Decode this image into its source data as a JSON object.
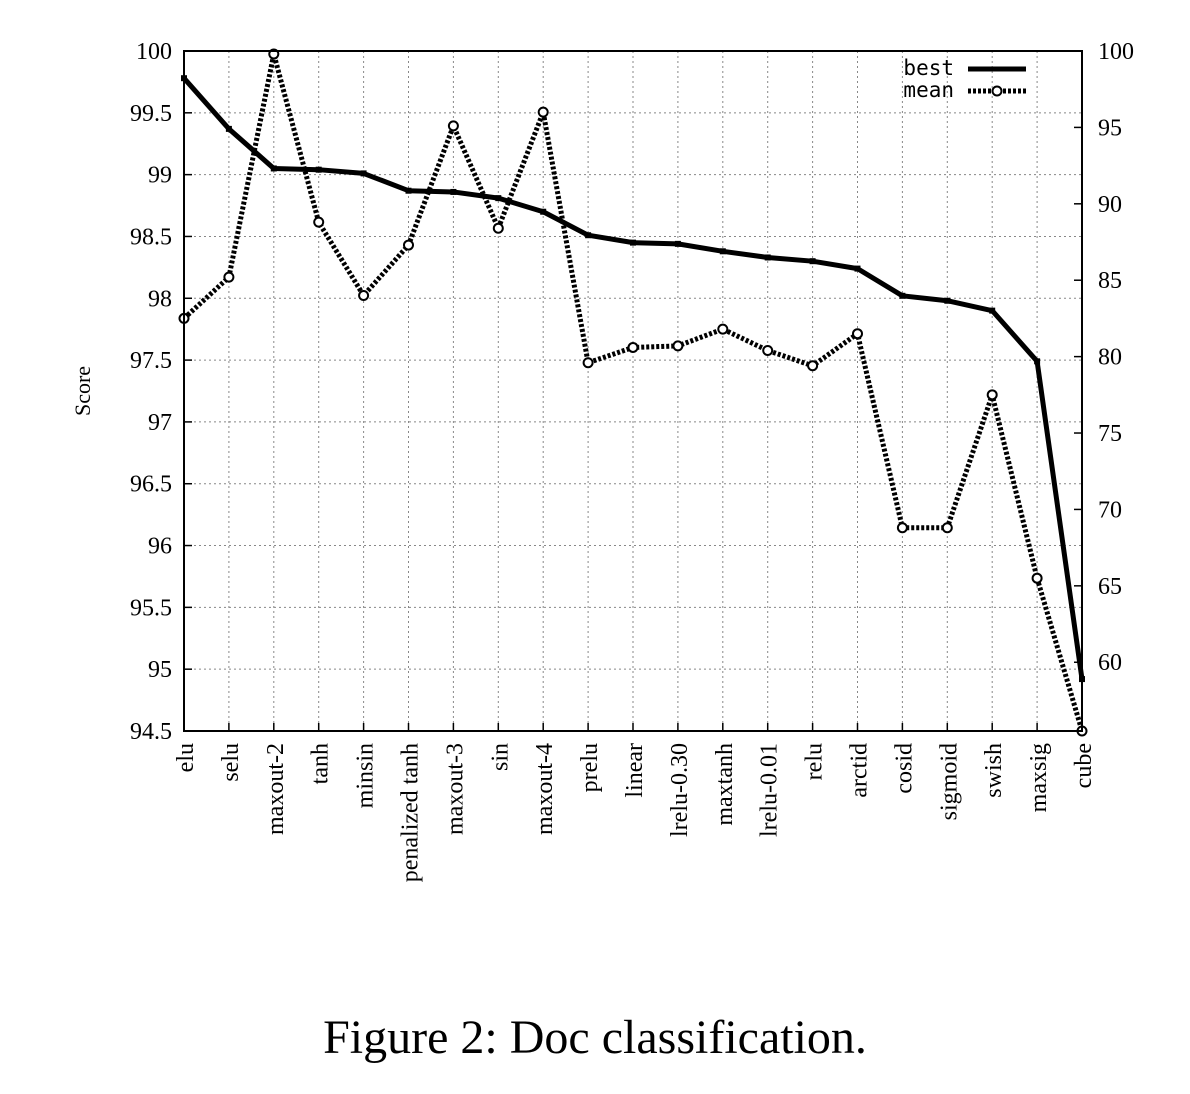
{
  "caption": "Figure 2: Doc classification.",
  "chart_data": {
    "type": "line",
    "title": "",
    "xlabel": "",
    "ylabel": "Score",
    "ylim": [
      94.5,
      100
    ],
    "y2lim": [
      55.5,
      100
    ],
    "yticks": [
      "94.5",
      "95",
      "95.5",
      "96",
      "96.5",
      "97",
      "97.5",
      "98",
      "98.5",
      "99",
      "99.5",
      "100"
    ],
    "y2ticks": [
      "60",
      "65",
      "70",
      "75",
      "80",
      "85",
      "90",
      "95",
      "100"
    ],
    "grid": true,
    "legend_position": "top-right",
    "categories": [
      "elu",
      "selu",
      "maxout-2",
      "tanh",
      "minsin",
      "penalized tanh",
      "maxout-3",
      "sin",
      "maxout-4",
      "prelu",
      "linear",
      "lrelu-0.30",
      "maxtanh",
      "lrelu-0.01",
      "relu",
      "arctid",
      "cosid",
      "sigmoid",
      "swish",
      "maxsig",
      "cube"
    ],
    "series": [
      {
        "name": "best",
        "axis": "left",
        "style": "solid",
        "color": "#000000",
        "values": [
          99.78,
          99.37,
          99.05,
          99.04,
          99.01,
          98.87,
          98.86,
          98.81,
          98.7,
          98.51,
          98.45,
          98.44,
          98.38,
          98.33,
          98.3,
          98.24,
          98.02,
          97.98,
          97.9,
          97.49,
          94.92
        ]
      },
      {
        "name": "mean",
        "axis": "right",
        "style": "dotted",
        "color": "#000000",
        "values": [
          82.5,
          85.2,
          99.8,
          88.8,
          84.0,
          87.3,
          95.1,
          88.4,
          96.0,
          79.6,
          80.6,
          80.7,
          81.8,
          80.4,
          79.4,
          81.5,
          68.8,
          68.8,
          77.5,
          65.5,
          55.5
        ]
      }
    ]
  }
}
